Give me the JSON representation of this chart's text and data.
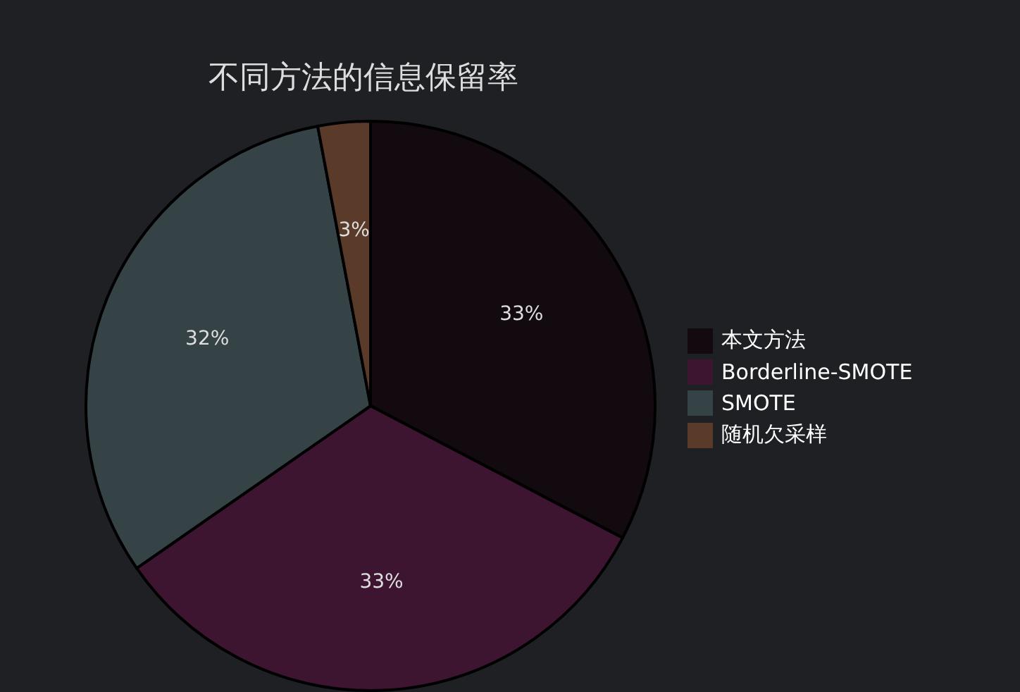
{
  "chart_data": {
    "type": "pie",
    "title": "不同方法的信息保留率",
    "categories": [
      "本文方法",
      "Borderline-SMOTE",
      "SMOTE",
      "随机欠采样"
    ],
    "values": [
      33,
      33,
      32,
      3
    ],
    "value_labels": [
      "33%",
      "33%",
      "32%",
      "3%"
    ],
    "colors": [
      "#120a0e",
      "#3d1530",
      "#354347",
      "#5a3a28"
    ],
    "legend": "right"
  }
}
